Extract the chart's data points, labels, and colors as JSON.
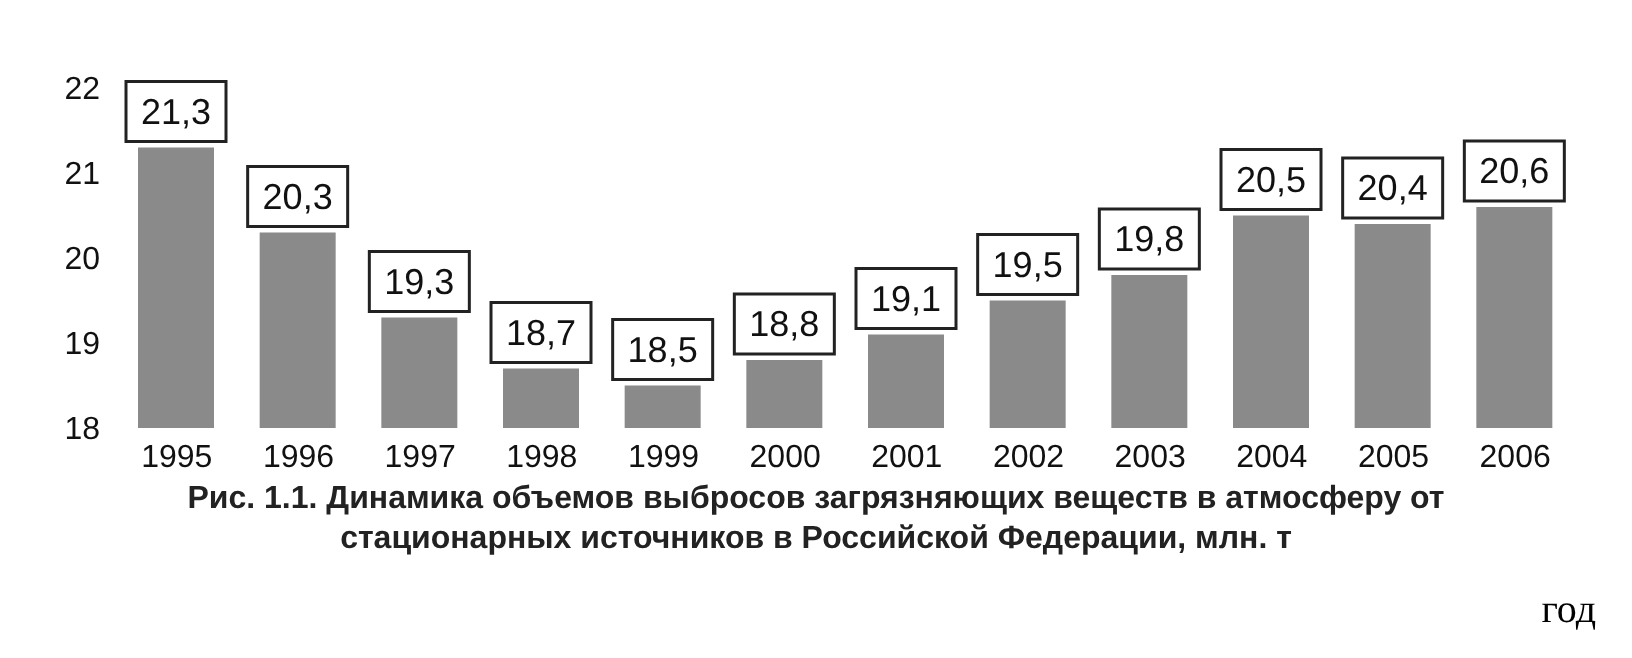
{
  "chart_data": {
    "type": "bar",
    "title": "Рис. 1.1. Динамика объемов выбросов загрязняющих веществ в атмосферу от стационарных источников в Российской Федерации, млн. т",
    "xlabel": "год",
    "categories": [
      "1995",
      "1996",
      "1997",
      "1998",
      "1999",
      "2000",
      "2001",
      "2002",
      "2003",
      "2004",
      "2005",
      "2006"
    ],
    "values": [
      21.3,
      20.3,
      19.3,
      18.7,
      18.5,
      18.8,
      19.1,
      19.5,
      19.8,
      20.5,
      20.4,
      20.6
    ],
    "value_labels": [
      "21,3",
      "20,3",
      "19,3",
      "18,7",
      "18,5",
      "18,8",
      "19,1",
      "19,5",
      "19,8",
      "20,5",
      "20,4",
      "20,6"
    ],
    "color": "#8a8a8a",
    "ylim": [
      18,
      22
    ],
    "yticks": [
      18,
      19,
      20,
      21,
      22
    ],
    "grid": false
  }
}
